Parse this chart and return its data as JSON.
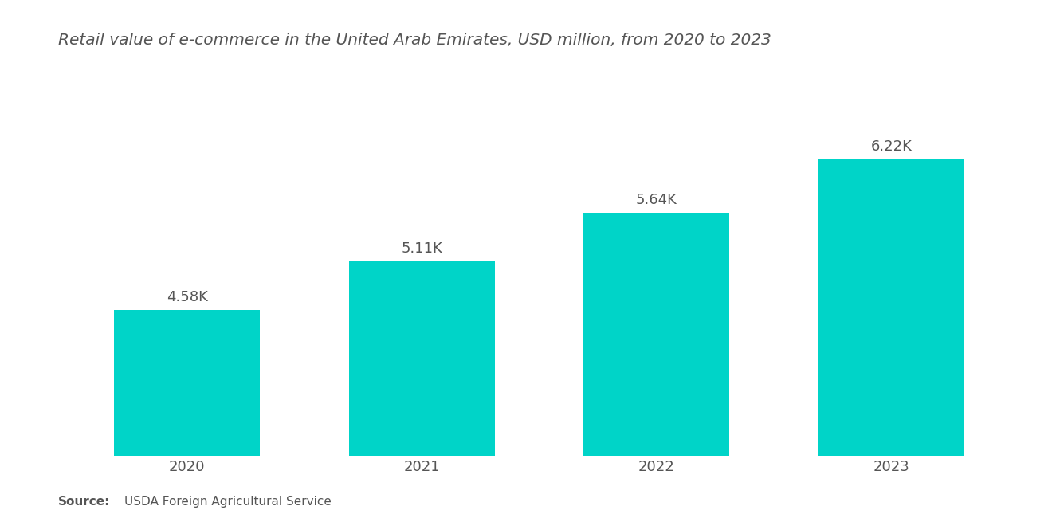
{
  "title": "Retail value of e-commerce in the United Arab Emirates, USD million, from 2020 to 2023",
  "categories": [
    "2020",
    "2021",
    "2022",
    "2023"
  ],
  "values": [
    4580,
    5110,
    5640,
    6220
  ],
  "labels": [
    "4.58K",
    "5.11K",
    "5.64K",
    "6.22K"
  ],
  "bar_color": "#00D4C8",
  "background_color": "#ffffff",
  "title_color": "#555555",
  "label_color": "#555555",
  "tick_color": "#555555",
  "source_bold": "Source:",
  "source_text": "USDA Foreign Agricultural Service",
  "ylim": [
    3000,
    7200
  ],
  "bar_width": 0.62,
  "title_fontsize": 14.5,
  "label_fontsize": 13,
  "tick_fontsize": 13,
  "source_fontsize": 11
}
